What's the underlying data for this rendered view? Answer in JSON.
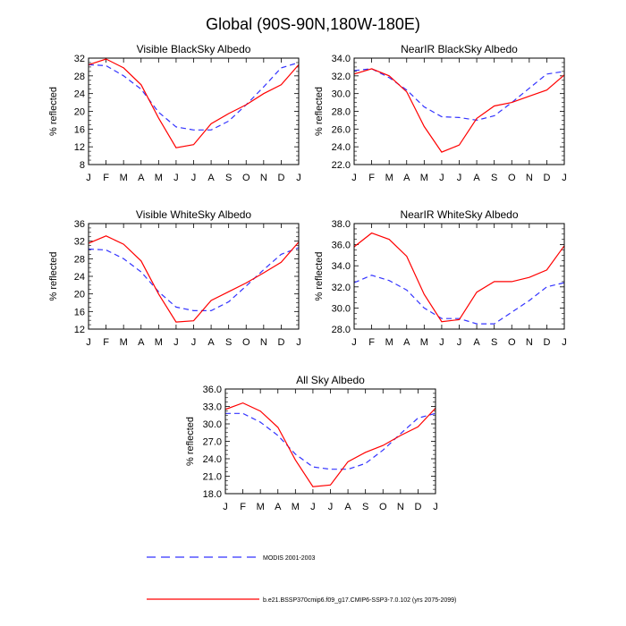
{
  "title": "Global (90S-90N,180W-180E)",
  "colors": {
    "obs": "#3333ff",
    "model": "#ff0000",
    "axes": "#000000"
  },
  "legend": {
    "obs_label": "MODIS 2001-2003",
    "model_label": "b.e21.BSSP370cmip6.f09_g17.CMIP6-SSP3-7.0.102 (yrs 2075-2099)"
  },
  "chart_data": [
    {
      "type": "line",
      "title": "Visible BlackSky Albedo",
      "ylabel": "% reflected",
      "categories": [
        "J",
        "F",
        "M",
        "A",
        "M",
        "J",
        "J",
        "A",
        "S",
        "O",
        "N",
        "D",
        "J"
      ],
      "ylim": [
        8,
        32
      ],
      "yticks": [
        "8",
        "12",
        "16",
        "20",
        "24",
        "28",
        "32"
      ],
      "series": [
        {
          "name": "MODIS 2001-2003",
          "style": "dashed",
          "values": [
            30.5,
            30.3,
            28.0,
            25.0,
            19.8,
            16.5,
            15.8,
            15.8,
            17.8,
            21.5,
            25.5,
            29.8,
            31.0
          ]
        },
        {
          "name": "b.e21.BSSP370cmip6.f09_g17.CMIP6-SSP3-7.0.102 (yrs 2075-2099)",
          "style": "solid",
          "values": [
            30.5,
            31.8,
            29.8,
            26.0,
            18.5,
            11.8,
            12.5,
            17.2,
            19.5,
            21.5,
            24.0,
            26.0,
            30.5
          ]
        }
      ]
    },
    {
      "type": "line",
      "title": "NearIR BlackSky Albedo",
      "ylabel": "% reflected",
      "categories": [
        "J",
        "F",
        "M",
        "A",
        "M",
        "J",
        "J",
        "A",
        "S",
        "O",
        "N",
        "D",
        "J"
      ],
      "ylim": [
        22,
        34
      ],
      "yticks": [
        "22.0",
        "24.0",
        "26.0",
        "28.0",
        "30.0",
        "32.0",
        "34.0"
      ],
      "series": [
        {
          "name": "MODIS 2001-2003",
          "style": "dashed",
          "values": [
            32.6,
            32.8,
            31.8,
            30.4,
            28.5,
            27.4,
            27.3,
            27.0,
            27.5,
            29.0,
            30.6,
            32.2,
            32.5
          ]
        },
        {
          "name": "b.e21.BSSP370cmip6.f09_g17.CMIP6-SSP3-7.0.102 (yrs 2075-2099)",
          "style": "solid",
          "values": [
            32.2,
            32.8,
            32.0,
            30.2,
            26.3,
            23.4,
            24.2,
            27.2,
            28.6,
            29.0,
            29.7,
            30.4,
            32.1
          ]
        }
      ]
    },
    {
      "type": "line",
      "title": "Visible WhiteSky Albedo",
      "ylabel": "% reflected",
      "categories": [
        "J",
        "F",
        "M",
        "A",
        "M",
        "J",
        "J",
        "A",
        "S",
        "O",
        "N",
        "D",
        "J"
      ],
      "ylim": [
        12,
        36
      ],
      "yticks": [
        "12",
        "16",
        "20",
        "24",
        "28",
        "32",
        "36"
      ],
      "series": [
        {
          "name": "MODIS 2001-2003",
          "style": "dashed",
          "values": [
            30.2,
            30.0,
            28.0,
            25.0,
            20.5,
            17.0,
            16.2,
            16.2,
            18.2,
            21.8,
            25.5,
            29.0,
            30.5
          ]
        },
        {
          "name": "b.e21.BSSP370cmip6.f09_g17.CMIP6-SSP3-7.0.102 (yrs 2075-2099)",
          "style": "solid",
          "values": [
            31.5,
            33.2,
            31.3,
            27.5,
            20.0,
            13.6,
            13.9,
            18.5,
            20.5,
            22.5,
            24.8,
            27.2,
            31.8
          ]
        }
      ]
    },
    {
      "type": "line",
      "title": "NearIR WhiteSky Albedo",
      "ylabel": "% reflected",
      "categories": [
        "J",
        "F",
        "M",
        "A",
        "M",
        "J",
        "J",
        "A",
        "S",
        "O",
        "N",
        "D",
        "J"
      ],
      "ylim": [
        28,
        38
      ],
      "yticks": [
        "28.0",
        "30.0",
        "32.0",
        "34.0",
        "36.0",
        "38.0"
      ],
      "series": [
        {
          "name": "MODIS 2001-2003",
          "style": "dashed",
          "values": [
            32.4,
            33.1,
            32.6,
            31.7,
            30.0,
            29.0,
            29.0,
            28.5,
            28.5,
            29.6,
            30.7,
            32.0,
            32.4
          ]
        },
        {
          "name": "b.e21.BSSP370cmip6.f09_g17.CMIP6-SSP3-7.0.102 (yrs 2075-2099)",
          "style": "solid",
          "values": [
            35.8,
            37.1,
            36.5,
            34.9,
            31.3,
            28.7,
            28.9,
            31.5,
            32.5,
            32.5,
            32.9,
            33.6,
            35.9
          ]
        }
      ]
    },
    {
      "type": "line",
      "title": "All Sky Albedo",
      "ylabel": "% reflected",
      "categories": [
        "J",
        "F",
        "M",
        "A",
        "M",
        "J",
        "J",
        "A",
        "S",
        "O",
        "N",
        "D",
        "J"
      ],
      "ylim": [
        18,
        36
      ],
      "yticks": [
        "18.0",
        "21.0",
        "24.0",
        "27.0",
        "30.0",
        "33.0",
        "36.0"
      ],
      "series": [
        {
          "name": "MODIS 2001-2003",
          "style": "dashed",
          "values": [
            31.8,
            31.8,
            30.3,
            28.0,
            24.8,
            22.6,
            22.2,
            22.2,
            23.2,
            25.5,
            28.3,
            31.0,
            31.8
          ]
        },
        {
          "name": "b.e21.BSSP370cmip6.f09_g17.CMIP6-SSP3-7.0.102 (yrs 2075-2099)",
          "style": "solid",
          "values": [
            32.5,
            33.6,
            32.2,
            29.4,
            23.8,
            19.2,
            19.5,
            23.5,
            25.1,
            26.3,
            28.0,
            29.5,
            32.7
          ]
        }
      ]
    }
  ]
}
